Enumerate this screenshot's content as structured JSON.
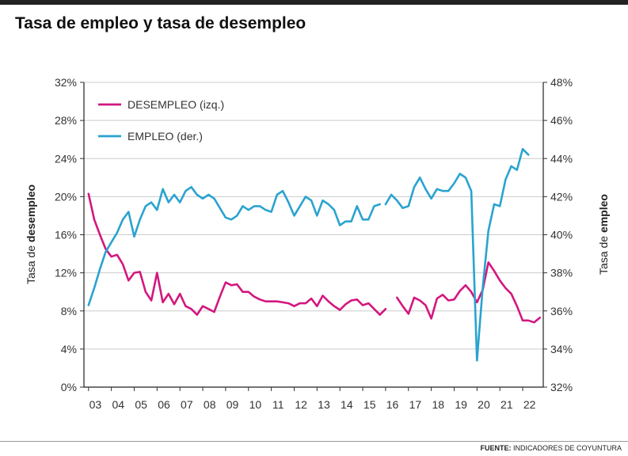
{
  "title": "Tasa de empleo y tasa de desempleo",
  "source": {
    "label": "FUENTE:",
    "text": "INDICADORES DE COYUNTURA"
  },
  "colors": {
    "desempleo": "#d3177f",
    "empleo": "#2aa3cf",
    "axis": "#333333",
    "grid": "#cccccc",
    "frame": "#222222"
  },
  "chart_data": {
    "type": "line",
    "title": "Tasa de empleo y tasa de desempleo",
    "x_ticks": [
      "03",
      "04",
      "05",
      "06",
      "07",
      "08",
      "09",
      "10",
      "11",
      "12",
      "13",
      "14",
      "15",
      "16",
      "17",
      "18",
      "19",
      "20",
      "21",
      "22"
    ],
    "xlim": [
      2002.8,
      2022.9
    ],
    "ylabel_left": {
      "prefix": "Tasa de ",
      "bold": "desempleo"
    },
    "ylabel_right": {
      "prefix": "Tasa de ",
      "bold": "empleo"
    },
    "y_left": {
      "ticks": [
        "0%",
        "4%",
        "8%",
        "12%",
        "16%",
        "20%",
        "24%",
        "28%",
        "32%"
      ],
      "lim": [
        0,
        32
      ]
    },
    "y_right": {
      "ticks": [
        "32%",
        "34%",
        "36%",
        "38%",
        "40%",
        "42%",
        "44%",
        "46%",
        "48%"
      ],
      "lim": [
        32,
        48
      ]
    },
    "grid": true,
    "legend_position": "top-left",
    "series": [
      {
        "name": "DESEMPLEO (izq.)",
        "axis": "left",
        "segments": [
          [
            [
              2003.0,
              20.3
            ],
            [
              2003.25,
              17.6
            ],
            [
              2003.5,
              16.0
            ],
            [
              2003.75,
              14.5
            ],
            [
              2004.0,
              13.7
            ],
            [
              2004.25,
              13.9
            ],
            [
              2004.5,
              12.9
            ],
            [
              2004.75,
              11.2
            ],
            [
              2005.0,
              12.0
            ],
            [
              2005.25,
              12.1
            ],
            [
              2005.5,
              10.0
            ],
            [
              2005.75,
              9.1
            ],
            [
              2006.0,
              12.0
            ],
            [
              2006.25,
              8.9
            ],
            [
              2006.5,
              9.8
            ],
            [
              2006.75,
              8.7
            ],
            [
              2007.0,
              9.8
            ],
            [
              2007.25,
              8.5
            ],
            [
              2007.5,
              8.2
            ],
            [
              2007.75,
              7.6
            ],
            [
              2008.0,
              8.5
            ],
            [
              2008.25,
              8.2
            ],
            [
              2008.5,
              7.9
            ],
            [
              2008.75,
              9.5
            ],
            [
              2009.0,
              11.0
            ],
            [
              2009.25,
              10.7
            ],
            [
              2009.5,
              10.8
            ],
            [
              2009.75,
              10.0
            ],
            [
              2010.0,
              10.0
            ],
            [
              2010.25,
              9.5
            ],
            [
              2010.5,
              9.2
            ],
            [
              2010.75,
              9.0
            ],
            [
              2011.0,
              9.0
            ],
            [
              2011.25,
              9.0
            ],
            [
              2011.5,
              8.9
            ],
            [
              2011.75,
              8.8
            ],
            [
              2012.0,
              8.5
            ],
            [
              2012.25,
              8.8
            ],
            [
              2012.5,
              8.8
            ],
            [
              2012.75,
              9.3
            ],
            [
              2013.0,
              8.5
            ],
            [
              2013.25,
              9.6
            ],
            [
              2013.5,
              9.0
            ],
            [
              2013.75,
              8.5
            ],
            [
              2014.0,
              8.1
            ],
            [
              2014.25,
              8.7
            ],
            [
              2014.5,
              9.1
            ],
            [
              2014.75,
              9.2
            ],
            [
              2015.0,
              8.6
            ],
            [
              2015.25,
              8.8
            ],
            [
              2015.5,
              8.2
            ],
            [
              2015.75,
              7.6
            ],
            [
              2016.0,
              8.2
            ]
          ],
          [
            [
              2016.5,
              9.4
            ],
            [
              2016.75,
              8.5
            ],
            [
              2017.0,
              7.7
            ],
            [
              2017.25,
              9.4
            ],
            [
              2017.5,
              9.1
            ],
            [
              2017.75,
              8.6
            ],
            [
              2018.0,
              7.2
            ],
            [
              2018.25,
              9.3
            ],
            [
              2018.5,
              9.7
            ],
            [
              2018.75,
              9.1
            ],
            [
              2019.0,
              9.2
            ],
            [
              2019.25,
              10.1
            ],
            [
              2019.5,
              10.7
            ],
            [
              2019.75,
              10.0
            ],
            [
              2020.0,
              8.9
            ],
            [
              2020.25,
              10.2
            ],
            [
              2020.5,
              13.1
            ],
            [
              2020.75,
              12.2
            ],
            [
              2021.0,
              11.2
            ],
            [
              2021.25,
              10.4
            ],
            [
              2021.5,
              9.8
            ],
            [
              2021.75,
              8.5
            ],
            [
              2022.0,
              7.0
            ],
            [
              2022.25,
              7.0
            ],
            [
              2022.5,
              6.8
            ],
            [
              2022.75,
              7.3
            ]
          ]
        ]
      },
      {
        "name": "EMPLEO (der.)",
        "axis": "right",
        "segments": [
          [
            [
              2003.0,
              36.3
            ],
            [
              2003.25,
              37.2
            ],
            [
              2003.5,
              38.2
            ],
            [
              2003.75,
              39.1
            ],
            [
              2004.0,
              39.6
            ],
            [
              2004.25,
              40.1
            ],
            [
              2004.5,
              40.8
            ],
            [
              2004.75,
              41.2
            ],
            [
              2005.0,
              39.9
            ],
            [
              2005.25,
              40.8
            ],
            [
              2005.5,
              41.5
            ],
            [
              2005.75,
              41.7
            ],
            [
              2006.0,
              41.3
            ],
            [
              2006.25,
              42.4
            ],
            [
              2006.5,
              41.7
            ],
            [
              2006.75,
              42.1
            ],
            [
              2007.0,
              41.7
            ],
            [
              2007.25,
              42.3
            ],
            [
              2007.5,
              42.5
            ],
            [
              2007.75,
              42.1
            ],
            [
              2008.0,
              41.9
            ],
            [
              2008.25,
              42.1
            ],
            [
              2008.5,
              41.9
            ],
            [
              2008.75,
              41.4
            ],
            [
              2009.0,
              40.9
            ],
            [
              2009.25,
              40.8
            ],
            [
              2009.5,
              41.0
            ],
            [
              2009.75,
              41.5
            ],
            [
              2010.0,
              41.3
            ],
            [
              2010.25,
              41.5
            ],
            [
              2010.5,
              41.5
            ],
            [
              2010.75,
              41.3
            ],
            [
              2011.0,
              41.2
            ],
            [
              2011.25,
              42.1
            ],
            [
              2011.5,
              42.3
            ],
            [
              2011.75,
              41.7
            ],
            [
              2012.0,
              41.0
            ],
            [
              2012.25,
              41.5
            ],
            [
              2012.5,
              42.0
            ],
            [
              2012.75,
              41.8
            ],
            [
              2013.0,
              41.0
            ],
            [
              2013.25,
              41.8
            ],
            [
              2013.5,
              41.6
            ],
            [
              2013.75,
              41.3
            ],
            [
              2014.0,
              40.5
            ],
            [
              2014.25,
              40.7
            ],
            [
              2014.5,
              40.7
            ],
            [
              2014.75,
              41.5
            ],
            [
              2015.0,
              40.8
            ],
            [
              2015.25,
              40.8
            ],
            [
              2015.5,
              41.5
            ],
            [
              2015.75,
              41.6
            ]
          ],
          [
            [
              2016.0,
              41.6
            ],
            [
              2016.25,
              42.1
            ],
            [
              2016.5,
              41.8
            ],
            [
              2016.75,
              41.4
            ],
            [
              2017.0,
              41.5
            ],
            [
              2017.25,
              42.5
            ],
            [
              2017.5,
              43.0
            ],
            [
              2017.75,
              42.4
            ],
            [
              2018.0,
              41.9
            ],
            [
              2018.25,
              42.4
            ],
            [
              2018.5,
              42.3
            ],
            [
              2018.75,
              42.3
            ],
            [
              2019.0,
              42.7
            ],
            [
              2019.25,
              43.2
            ],
            [
              2019.5,
              43.0
            ],
            [
              2019.75,
              42.3
            ],
            [
              2020.0,
              33.4
            ],
            [
              2020.25,
              37.2
            ],
            [
              2020.5,
              40.2
            ],
            [
              2020.75,
              41.6
            ],
            [
              2021.0,
              41.5
            ],
            [
              2021.25,
              42.9
            ],
            [
              2021.5,
              43.6
            ],
            [
              2021.75,
              43.4
            ],
            [
              2022.0,
              44.5
            ],
            [
              2022.25,
              44.2
            ]
          ]
        ]
      }
    ]
  }
}
